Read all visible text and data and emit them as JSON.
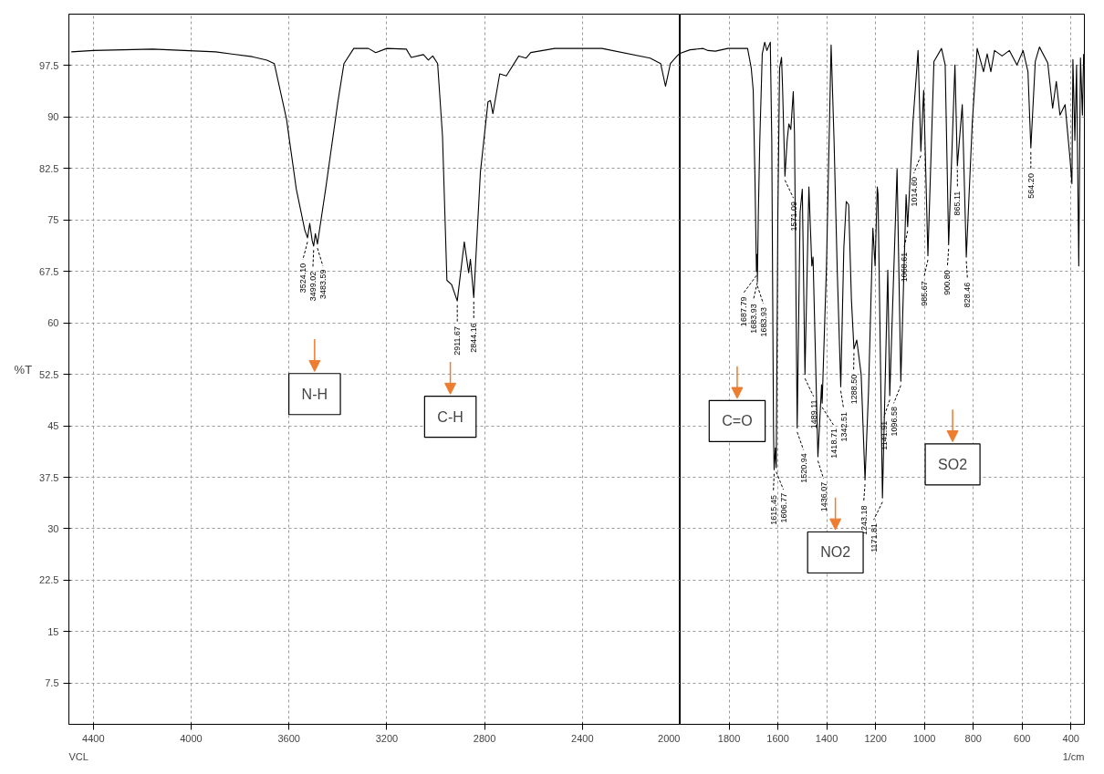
{
  "chart_data": [
    {
      "type": "line",
      "ylabel": "%T",
      "xlim": [
        4500,
        2000
      ],
      "ylim": [
        1.5,
        105
      ],
      "xticks": [
        4400,
        4000,
        3600,
        3200,
        2800,
        2400,
        2000
      ],
      "yticks": [
        7.5,
        15,
        22.5,
        30,
        37.5,
        45,
        52.5,
        60,
        67.5,
        75,
        82.5,
        90,
        97.5
      ],
      "grid": true,
      "series": [
        {
          "color": "#000000",
          "x": [
            4490,
            4400,
            4157,
            3900,
            3750,
            3690,
            3660,
            3610,
            3570,
            3535,
            3524.1,
            3515,
            3505,
            3499.02,
            3492,
            3483.59,
            3450,
            3400,
            3375,
            3335,
            3275,
            3245,
            3200,
            3120,
            3100,
            3050,
            3030,
            3012,
            2992,
            2972,
            2954,
            2935,
            2911.67,
            2883,
            2865,
            2858,
            2844.16,
            2817,
            2786,
            2776,
            2766,
            2738,
            2711,
            2660,
            2630,
            2611,
            2513,
            2320,
            2123,
            2080,
            2060,
            2040,
            2010,
            2000
          ],
          "values": [
            99.5,
            99.7,
            99.9,
            99.5,
            98.8,
            98.3,
            97.8,
            89.7,
            79.5,
            73.5,
            72.4,
            74.5,
            72,
            71.2,
            73,
            71.5,
            79.5,
            92.2,
            97.8,
            100,
            100,
            99.4,
            100,
            99.9,
            98.7,
            99.1,
            98.3,
            98.9,
            97.8,
            87.2,
            66.2,
            65.6,
            63.2,
            71.8,
            67.3,
            69.3,
            63.7,
            82,
            92.2,
            92.4,
            90.5,
            96.3,
            96,
            98.9,
            98.6,
            99.4,
            100,
            100,
            98.6,
            97.8,
            94.5,
            97.8,
            99,
            99.3
          ]
        }
      ],
      "annotations": [
        {
          "text": "3524.10",
          "x": 3524.1,
          "y": 72.4
        },
        {
          "text": "3499.02",
          "x": 3499.02,
          "y": 71.2
        },
        {
          "text": "3483.59",
          "x": 3483.59,
          "y": 71.5
        },
        {
          "text": "2911.67",
          "x": 2911.67,
          "y": 63.2
        },
        {
          "text": "2844.16",
          "x": 2844.16,
          "y": 63.7
        },
        "N-H",
        "C-H",
        "VCL"
      ]
    },
    {
      "type": "line",
      "xlabel": "1/cm",
      "xlim": [
        2000,
        345
      ],
      "ylim": [
        1.5,
        105
      ],
      "xticks": [
        1800,
        1600,
        1400,
        1200,
        1000,
        800,
        600,
        400
      ],
      "yticks": [
        7.5,
        15,
        22.5,
        30,
        37.5,
        45,
        52.5,
        60,
        67.5,
        75,
        82.5,
        90,
        97.5
      ],
      "tick_labels": "x",
      "grid": true,
      "series": [
        {
          "color": "#000000",
          "x": [
            2000,
            1960,
            1906,
            1886,
            1856,
            1805,
            1724,
            1709,
            1701,
            1694,
            1687.79,
            1685,
            1683.93,
            1683.93,
            1680,
            1674,
            1664,
            1654,
            1645,
            1638,
            1631,
            1625,
            1618,
            1615.45,
            1610,
            1606.77,
            1600,
            1593,
            1585,
            1581,
            1571.09,
            1562,
            1555,
            1547,
            1537,
            1532,
            1520.94,
            1509,
            1500,
            1489.11,
            1473,
            1461,
            1456,
            1436.07,
            1421,
            1418.71,
            1401,
            1382,
            1370,
            1357,
            1342.51,
            1330,
            1320,
            1310,
            1299,
            1288.5,
            1277,
            1259,
            1243.18,
            1229,
            1211,
            1202,
            1193,
            1190,
            1171.81,
            1150,
            1141.91,
            1112,
            1096.58,
            1075,
            1068.61,
            1047,
            1026,
            1014.6,
            1003,
            985.67,
            961,
            930,
            915,
            900.8,
            875,
            865.11,
            845,
            828.46,
            804,
            784,
            758,
            743,
            728,
            713,
            682,
            652,
            621,
            596,
            576,
            564.2,
            546,
            529,
            495,
            475,
            460,
            445,
            424,
            404,
            396,
            392,
            384,
            377,
            368,
            361,
            353,
            348
          ],
          "values": [
            99.3,
            99.8,
            100,
            99.7,
            99.6,
            100,
            100,
            97.1,
            93.9,
            81.4,
            67.5,
            70,
            66.5,
            66,
            76,
            86.6,
            99.2,
            100.9,
            99.7,
            100.3,
            100.9,
            86.6,
            44.7,
            38.6,
            41.8,
            38.9,
            76.1,
            97.1,
            98.7,
            94.5,
            81.4,
            86.6,
            89,
            88.2,
            93.7,
            87.6,
            44.7,
            76.1,
            79.5,
            52.5,
            79.8,
            68.3,
            69.6,
            40.5,
            51,
            48.3,
            68.3,
            100.5,
            86.6,
            67.7,
            50.7,
            70.9,
            77.7,
            77.2,
            63.5,
            56.2,
            57.5,
            52.5,
            37.1,
            49.9,
            73.8,
            68.3,
            79.8,
            78.8,
            34.5,
            67.7,
            49.4,
            82.4,
            51.5,
            78.7,
            74,
            89.2,
            99.7,
            85,
            93.9,
            69.8,
            98.1,
            100,
            97.6,
            71.4,
            97.6,
            82.9,
            91.8,
            69.6,
            89.2,
            100,
            96.6,
            99.2,
            96.6,
            99.7,
            98.9,
            99.7,
            97.6,
            99.7,
            96.6,
            85.5,
            98.1,
            100.2,
            97.9,
            91.3,
            95.2,
            90.3,
            91.8,
            84,
            80.3,
            98.4,
            86.6,
            97.6,
            68.3,
            98.6,
            90.3,
            99.2
          ]
        }
      ],
      "annotations": [
        {
          "text": "1687.79",
          "x": 1687.79,
          "y": 67.5
        },
        {
          "text": "1683.93",
          "x": 1683.93,
          "y": 66.5
        },
        {
          "text": "1683.93",
          "x": 1683.93,
          "y": 66
        },
        {
          "text": "1615.45",
          "x": 1615.45,
          "y": 38.6
        },
        {
          "text": "1606.77",
          "x": 1606.77,
          "y": 38.9
        },
        {
          "text": "1571.09",
          "x": 1571.09,
          "y": 81.4
        },
        {
          "text": "1520.94",
          "x": 1520.94,
          "y": 44.7
        },
        {
          "text": "1489.11",
          "x": 1489.11,
          "y": 52.5
        },
        {
          "text": "1436.07",
          "x": 1436.07,
          "y": 40.5
        },
        {
          "text": "1418.71",
          "x": 1418.71,
          "y": 48.3
        },
        {
          "text": "1342.51",
          "x": 1342.51,
          "y": 50.7
        },
        {
          "text": "1288.50",
          "x": 1288.5,
          "y": 56.2
        },
        {
          "text": "1243.18",
          "x": 1243.18,
          "y": 37.1
        },
        {
          "text": "1171.81",
          "x": 1171.81,
          "y": 34.5
        },
        {
          "text": "1141.91",
          "x": 1141.91,
          "y": 49.4
        },
        {
          "text": "1096.58",
          "x": 1096.58,
          "y": 51.5
        },
        {
          "text": "1068.61",
          "x": 1068.61,
          "y": 74
        },
        {
          "text": "1014.60",
          "x": 1014.6,
          "y": 85
        },
        {
          "text": "985.67",
          "x": 985.67,
          "y": 69.8
        },
        {
          "text": "900.80",
          "x": 900.8,
          "y": 71.4
        },
        {
          "text": "865.11",
          "x": 865.11,
          "y": 82.9
        },
        {
          "text": "828.46",
          "x": 828.46,
          "y": 69.6
        },
        {
          "text": "564.20",
          "x": 564.2,
          "y": 85.5
        },
        "C=O",
        "NO2",
        "SO2"
      ]
    }
  ]
}
